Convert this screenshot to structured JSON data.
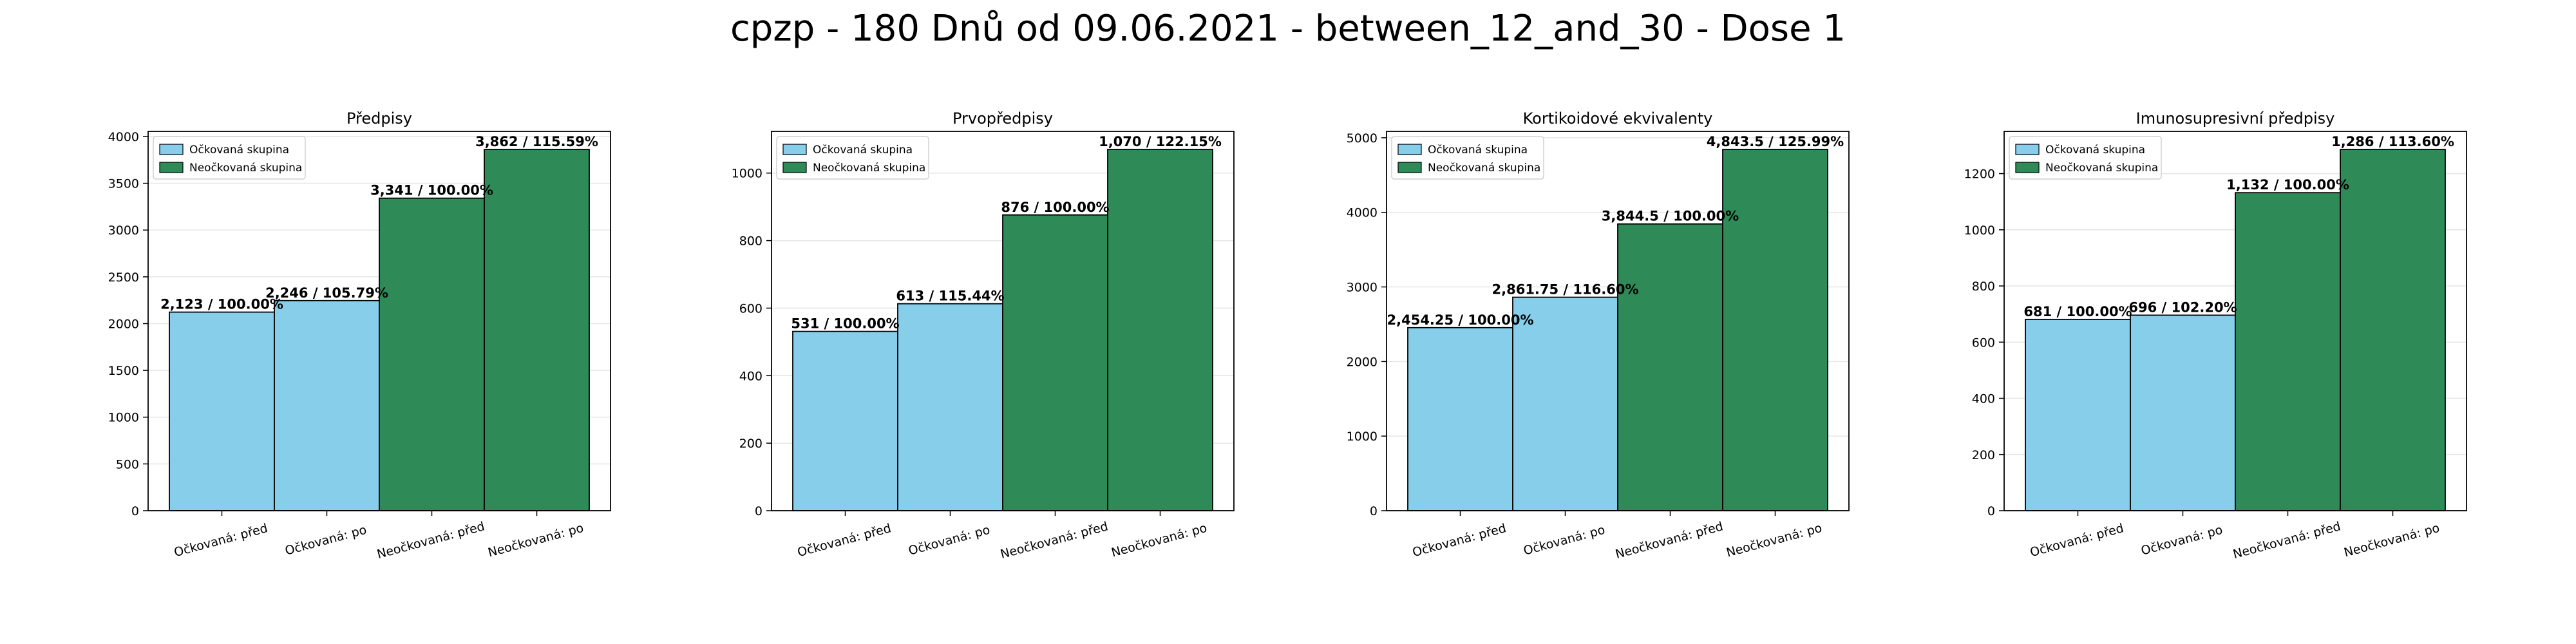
{
  "figure": {
    "suptitle": "cpzp - 180 Dnů od 09.06.2021 - between_12_and_30 - Dose 1"
  },
  "colors": {
    "vaccinated": "#87ceeb",
    "unvaccinated": "#2e8b57",
    "edge": "#000000",
    "grid": "#e6e6e6"
  },
  "legend": {
    "position": "upper-left",
    "labels": [
      "Očkovaná skupina",
      "Neočkovaná skupina"
    ]
  },
  "chart_data": [
    {
      "type": "bar",
      "title": "Předpisy",
      "categories": [
        "Očkovaná: před",
        "Očkovaná: po",
        "Neočkovaná: před",
        "Neočkovaná: po"
      ],
      "values": [
        2123,
        2246,
        3341,
        3862
      ],
      "labels": [
        "2,123 / 100.00%",
        "2,246 / 105.79%",
        "3,341 / 100.00%",
        "3,862 / 115.59%"
      ],
      "groups": [
        "vaccinated",
        "vaccinated",
        "unvaccinated",
        "unvaccinated"
      ],
      "yticks": [
        0,
        500,
        1000,
        1500,
        2000,
        2500,
        3000,
        3500,
        4000
      ],
      "ylim": [
        0,
        4055
      ],
      "grid": true
    },
    {
      "type": "bar",
      "title": "Prvopředpisy",
      "categories": [
        "Očkovaná: před",
        "Očkovaná: po",
        "Neočkovaná: před",
        "Neočkovaná: po"
      ],
      "values": [
        531,
        613,
        876,
        1070
      ],
      "labels": [
        "531 / 100.00%",
        "613 / 115.44%",
        "876 / 100.00%",
        "1,070 / 122.15%"
      ],
      "groups": [
        "vaccinated",
        "vaccinated",
        "unvaccinated",
        "unvaccinated"
      ],
      "yticks": [
        0,
        200,
        400,
        600,
        800,
        1000
      ],
      "ylim": [
        0,
        1123.5
      ],
      "grid": true
    },
    {
      "type": "bar",
      "title": "Kortikoidové ekvivalenty",
      "categories": [
        "Očkovaná: před",
        "Očkovaná: po",
        "Neočkovaná: před",
        "Neočkovaná: po"
      ],
      "values": [
        2454.25,
        2861.75,
        3844.5,
        4843.5
      ],
      "labels": [
        "2,454.25 / 100.00%",
        "2,861.75 / 116.60%",
        "3,844.5 / 100.00%",
        "4,843.5 / 125.99%"
      ],
      "groups": [
        "vaccinated",
        "vaccinated",
        "unvaccinated",
        "unvaccinated"
      ],
      "yticks": [
        0,
        1000,
        2000,
        3000,
        4000,
        5000
      ],
      "ylim": [
        0,
        5085.7
      ],
      "grid": true
    },
    {
      "type": "bar",
      "title": "Imunosupresivní předpisy",
      "categories": [
        "Očkovaná: před",
        "Očkovaná: po",
        "Neočkovaná: před",
        "Neočkovaná: po"
      ],
      "values": [
        681,
        696,
        1132,
        1286
      ],
      "labels": [
        "681 / 100.00%",
        "696 / 102.20%",
        "1,132 / 100.00%",
        "1,286 / 113.60%"
      ],
      "groups": [
        "vaccinated",
        "vaccinated",
        "unvaccinated",
        "unvaccinated"
      ],
      "yticks": [
        0,
        200,
        400,
        600,
        800,
        1000,
        1200
      ],
      "ylim": [
        0,
        1350.3
      ],
      "grid": true
    }
  ]
}
